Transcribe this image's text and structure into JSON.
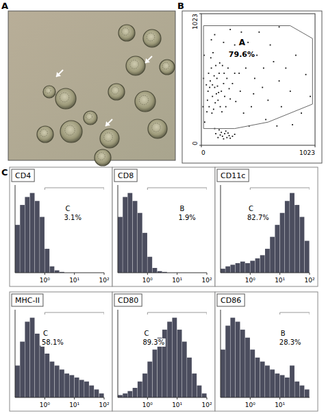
{
  "figure": {
    "panel_labels": [
      "A",
      "B",
      "C"
    ]
  },
  "chart_data": [
    {
      "type": "scatter",
      "color": "#111111",
      "x": [
        60,
        80,
        100,
        120,
        140,
        70,
        90,
        150,
        180,
        200,
        110,
        130,
        160,
        55,
        75,
        95,
        115,
        135,
        170,
        190,
        210,
        230,
        250,
        85,
        105,
        65,
        125,
        145,
        165,
        185,
        220,
        240,
        260,
        280,
        300,
        45,
        50,
        100,
        155,
        205,
        150,
        170,
        190,
        210,
        230,
        250,
        180,
        200,
        220,
        160,
        240,
        260,
        130,
        280,
        300,
        120,
        350,
        400,
        450,
        500,
        380,
        420,
        550,
        600,
        650,
        700,
        330,
        480,
        520,
        580,
        620,
        720,
        760,
        800,
        850,
        900,
        940,
        980,
        360,
        430,
        680,
        820,
        310,
        340,
        470,
        560,
        200,
        260,
        120,
        300,
        700,
        90,
        15,
        20,
        25,
        30
      ],
      "y": [
        420,
        500,
        380,
        450,
        520,
        300,
        600,
        350,
        420,
        480,
        280,
        620,
        560,
        350,
        450,
        250,
        540,
        400,
        300,
        620,
        380,
        520,
        440,
        680,
        720,
        560,
        330,
        460,
        640,
        260,
        300,
        600,
        360,
        480,
        560,
        470,
        260,
        470,
        410,
        560,
        60,
        80,
        70,
        90,
        60,
        75,
        100,
        50,
        110,
        120,
        95,
        55,
        90,
        70,
        85,
        130,
        420,
        600,
        300,
        700,
        250,
        800,
        450,
        350,
        650,
        500,
        720,
        520,
        880,
        200,
        780,
        300,
        600,
        420,
        700,
        250,
        550,
        380,
        880,
        150,
        150,
        160,
        340,
        560,
        400,
        600,
        800,
        900,
        860,
        780,
        920,
        820,
        300,
        520,
        700,
        180
      ],
      "xlim": [
        0,
        1023
      ],
      "ylim": [
        0,
        1023
      ],
      "xticks": [
        0,
        1023
      ],
      "yticks": [
        0,
        1023
      ],
      "gate": {
        "x": [
          20,
          800,
          1000,
          1000,
          600,
          300,
          20
        ],
        "y": [
          930,
          930,
          830,
          320,
          180,
          130,
          130
        ],
        "name": "A",
        "value": 79.6,
        "value_label": "79.6%"
      }
    },
    {
      "type": "histogram",
      "title": "CD4",
      "log": "x",
      "tick_labels": "x",
      "color": "#4b4d5e",
      "bins": [
        0.1,
        0.147,
        0.215,
        0.316,
        0.464,
        0.681,
        1,
        1.47,
        2.15,
        3.16,
        4.64,
        6.81,
        10,
        14.7,
        21.5,
        31.6,
        46.4,
        68.1,
        100
      ],
      "counts": [
        60,
        85,
        95,
        100,
        90,
        70,
        30,
        8,
        3,
        1,
        0,
        0,
        0,
        0,
        0,
        0,
        0,
        0
      ],
      "xlim": [
        0.1,
        100
      ],
      "ylim": [
        0,
        110
      ],
      "xticks": [
        {
          "value": 1,
          "label": "10⁰"
        },
        {
          "value": 10,
          "label": "10¹"
        },
        {
          "value": 100,
          "label": "10²"
        }
      ],
      "gate": {
        "name": "C",
        "value": 3.1,
        "value_label": "3.1%",
        "range": [
          1,
          100
        ]
      }
    },
    {
      "type": "histogram",
      "title": "CD8",
      "log": "x",
      "tick_labels": "x",
      "color": "#4b4d5e",
      "bins": [
        0.1,
        0.147,
        0.215,
        0.316,
        0.464,
        0.681,
        1,
        1.47,
        2.15,
        3.16,
        4.64,
        6.81,
        10,
        14.7,
        21.5,
        31.6,
        46.4,
        68.1,
        100
      ],
      "counts": [
        70,
        95,
        100,
        90,
        75,
        50,
        20,
        6,
        2,
        1,
        0,
        0,
        0,
        0,
        0,
        0,
        0,
        0
      ],
      "xlim": [
        0.1,
        100
      ],
      "ylim": [
        0,
        110
      ],
      "xticks": [
        {
          "value": 1,
          "label": "10⁰"
        },
        {
          "value": 10,
          "label": "10¹"
        },
        {
          "value": 100,
          "label": "10²"
        }
      ],
      "gate": {
        "name": "B",
        "value": 1.9,
        "value_label": "1.9%",
        "range": [
          1,
          100
        ]
      }
    },
    {
      "type": "histogram",
      "title": "CD11c",
      "log": "x",
      "tick_labels": "x",
      "color": "#4b4d5e",
      "bins": [
        0.1,
        0.147,
        0.215,
        0.316,
        0.464,
        0.681,
        1,
        1.47,
        2.15,
        3.16,
        4.64,
        6.81,
        10,
        14.7,
        21.5,
        31.6,
        46.4,
        68.1,
        100
      ],
      "counts": [
        5,
        8,
        10,
        12,
        14,
        12,
        15,
        18,
        22,
        30,
        45,
        60,
        75,
        90,
        100,
        85,
        70,
        40
      ],
      "xlim": [
        0.1,
        100
      ],
      "ylim": [
        0,
        110
      ],
      "xticks": [
        {
          "value": 1,
          "label": "10⁰"
        },
        {
          "value": 10,
          "label": "10¹"
        },
        {
          "value": 100,
          "label": "10²"
        }
      ],
      "gate": {
        "name": "C",
        "value": 82.7,
        "value_label": "82.7%",
        "range": [
          1,
          100
        ]
      }
    },
    {
      "type": "histogram",
      "title": "MHC-II",
      "log": "x",
      "tick_labels": "x",
      "color": "#4b4d5e",
      "bins": [
        0.1,
        0.147,
        0.215,
        0.316,
        0.464,
        0.681,
        1,
        1.47,
        2.15,
        3.16,
        4.64,
        6.81,
        10,
        14.7,
        21.5,
        31.6,
        46.4,
        68.1,
        100
      ],
      "counts": [
        40,
        70,
        95,
        100,
        80,
        65,
        55,
        45,
        40,
        35,
        30,
        28,
        25,
        22,
        20,
        15,
        10,
        5
      ],
      "xlim": [
        0.1,
        100
      ],
      "ylim": [
        0,
        110
      ],
      "xticks": [
        {
          "value": 1,
          "label": "10⁰"
        },
        {
          "value": 10,
          "label": "10¹"
        },
        {
          "value": 100,
          "label": "10²"
        }
      ],
      "gate": {
        "name": "C",
        "value": 58.1,
        "value_label": "58.1%",
        "range": [
          1,
          100
        ]
      }
    },
    {
      "type": "histogram",
      "title": "CD80",
      "log": "x",
      "tick_labels": "x",
      "color": "#4b4d5e",
      "bins": [
        0.1,
        0.147,
        0.215,
        0.316,
        0.464,
        0.681,
        1,
        1.47,
        2.15,
        3.16,
        4.64,
        6.81,
        10,
        14.7,
        21.5,
        31.6,
        46.4,
        68.1,
        100
      ],
      "counts": [
        3,
        5,
        8,
        12,
        20,
        30,
        45,
        60,
        75,
        85,
        95,
        100,
        85,
        70,
        50,
        30,
        15,
        5
      ],
      "xlim": [
        0.1,
        100
      ],
      "ylim": [
        0,
        110
      ],
      "xticks": [
        {
          "value": 1,
          "label": "10⁰"
        },
        {
          "value": 10,
          "label": "10¹"
        },
        {
          "value": 100,
          "label": "10²"
        }
      ],
      "gate": {
        "name": "C",
        "value": 89.3,
        "value_label": "89.3%",
        "range": [
          1,
          100
        ]
      }
    },
    {
      "type": "histogram",
      "title": "CD86",
      "log": "x",
      "tick_labels": "x",
      "color": "#4b4d5e",
      "bins": [
        0.1,
        0.147,
        0.215,
        0.316,
        0.464,
        0.681,
        1,
        1.47,
        2.15,
        3.16,
        4.64,
        6.81,
        10,
        14.7,
        21.5,
        31.6,
        46.4,
        68.1,
        100
      ],
      "counts": [
        60,
        90,
        100,
        95,
        85,
        75,
        60,
        50,
        45,
        40,
        35,
        30,
        28,
        25,
        40,
        20,
        15,
        10
      ],
      "xlim": [
        0.1,
        100
      ],
      "ylim": [
        0,
        110
      ],
      "xticks": [
        {
          "value": 1,
          "label": "10⁰"
        },
        {
          "value": 10,
          "label": "10¹"
        }
      ],
      "gate": {
        "name": "B",
        "value": 28.3,
        "value_label": "28.3%",
        "range": [
          10,
          100
        ]
      }
    }
  ]
}
